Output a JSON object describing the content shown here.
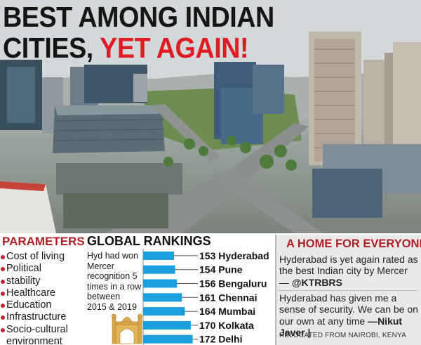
{
  "headline": {
    "line1": "BEST AMONG INDIAN",
    "line2_black": "CITIES, ",
    "line2_red": "YET AGAIN!"
  },
  "colors": {
    "headline_red": "#e01c23",
    "section_red": "#b01f25",
    "bar_blue": "#1ca0dd",
    "panel_gray": "#e9e9ea"
  },
  "parameters": {
    "title": "PARAMETERS",
    "items": [
      "Cost of living",
      "Political",
      "stability",
      "Healthcare",
      "Education",
      "Infrastructure",
      "Socio-cultural",
      "environment"
    ]
  },
  "global_rankings": {
    "title": "GLOBAL RANKINGS",
    "note": "Hyd had won Mercer recognition 5 times in a row between 2015 & 2019"
  },
  "chart_data": {
    "type": "bar",
    "title": "GLOBAL RANKINGS",
    "categories": [
      "Hyderabad",
      "Pune",
      "Bengaluru",
      "Chennai",
      "Mumbai",
      "Kolkata",
      "Delhi"
    ],
    "values": [
      153,
      154,
      156,
      161,
      164,
      170,
      172
    ],
    "labels": [
      "153 Hyderabad",
      "154 Pune",
      "156 Bengaluru",
      "161 Chennai",
      "164 Mumbai",
      "170 Kolkata",
      "172 Delhi"
    ]
  },
  "home": {
    "title": "A HOME FOR EVERYONE",
    "quote1": "Hyderabad is yet again rated as the best Indian city by Mercer —",
    "quote1_handle": "@KTRBRS",
    "quote2": "Hyderabad has given me a sense of security. We can be on our own at any time ",
    "quote2_author": "—Nikut Javer |",
    "relocated": "RELOCATED FROM NAIROBI, KENYA"
  }
}
